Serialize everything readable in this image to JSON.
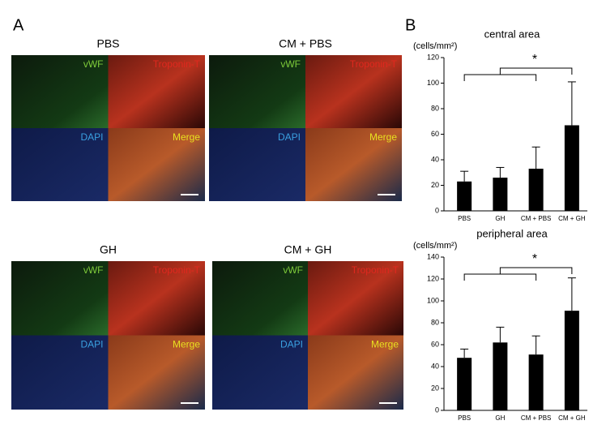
{
  "panel_labels": [
    "A",
    "B"
  ],
  "micrographs": [
    {
      "title": "PBS",
      "channels": [
        "vWF",
        "Troponin-T",
        "DAPI",
        "Merge"
      ]
    },
    {
      "title": "CM + PBS",
      "channels": [
        "vWF",
        "Troponin-T",
        "DAPI",
        "Merge"
      ]
    },
    {
      "title": "GH",
      "channels": [
        "vWF",
        "Troponin-T",
        "DAPI",
        "Merge"
      ]
    },
    {
      "title": "CM + GH",
      "channels": [
        "vWF",
        "Troponin-T",
        "DAPI",
        "Merge"
      ]
    }
  ],
  "chart_data": [
    {
      "type": "bar",
      "title": "central area",
      "y_label": "(cells/mm²)",
      "categories": [
        "PBS",
        "GH",
        "CM + PBS",
        "CM + GH"
      ],
      "values": [
        23,
        26,
        33,
        67
      ],
      "errors": [
        8,
        8,
        17,
        34
      ],
      "color": "#000000",
      "ylim": [
        0,
        120
      ],
      "yticks": [
        0,
        20,
        40,
        60,
        80,
        100,
        120
      ],
      "annotation": "*"
    },
    {
      "type": "bar",
      "title": "peripheral area",
      "y_label": "(cells/mm²)",
      "categories": [
        "PBS",
        "GH",
        "CM + PBS",
        "CM + GH"
      ],
      "values": [
        48,
        62,
        51,
        91
      ],
      "errors": [
        8,
        14,
        17,
        30
      ],
      "color": "#000000",
      "ylim": [
        0,
        140
      ],
      "yticks": [
        0,
        20,
        40,
        60,
        80,
        100,
        120,
        140
      ],
      "annotation": "*"
    }
  ]
}
